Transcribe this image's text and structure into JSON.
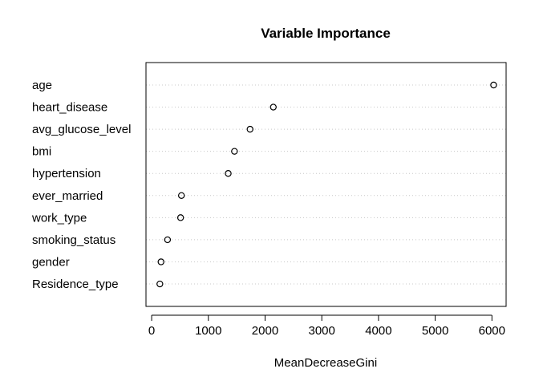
{
  "chart_data": {
    "type": "scatter",
    "title": "Variable Importance",
    "xlabel": "MeanDecreaseGini",
    "ylabel": "",
    "xlim": [
      -100,
      6250
    ],
    "x_ticks": [
      0,
      1000,
      2000,
      3000,
      4000,
      5000,
      6000
    ],
    "grid": "horizontal dotted",
    "categories": [
      "age",
      "heart_disease",
      "avg_glucose_level",
      "bmi",
      "hypertension",
      "ever_married",
      "work_type",
      "smoking_status",
      "gender",
      "Residence_type"
    ],
    "values": [
      6030,
      2145,
      1735,
      1460,
      1350,
      525,
      510,
      280,
      165,
      145
    ],
    "colors": {
      "axis": "#000000",
      "grid": "#c8c8c8",
      "point": "#000000"
    }
  }
}
